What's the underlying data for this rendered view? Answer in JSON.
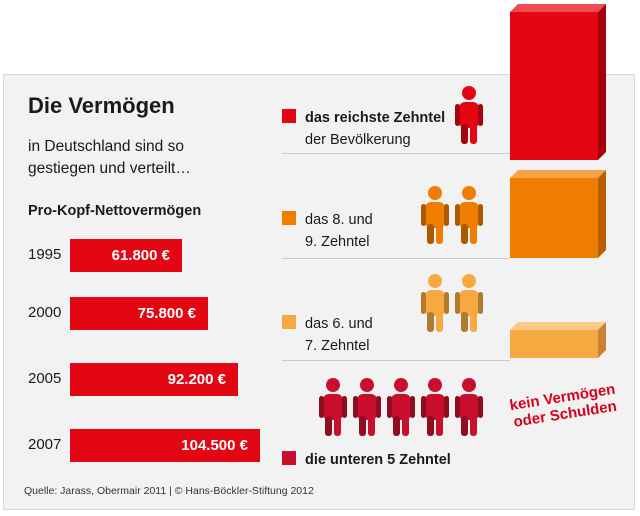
{
  "header": {
    "title": "Die Vermögen",
    "subtitle": "in Deutschland sind so gestiegen und verteilt…",
    "ylabel": "Pro-Kopf-Nettovermögen"
  },
  "source": "Quelle: Jarass, Obermair 2011 | © Hans-Böckler-Stiftung 2012",
  "colors": {
    "bar": "#e30613",
    "top_decile": "#e30613",
    "decile_8_9": "#ef7d00",
    "decile_6_7": "#f7a941",
    "bottom_5": "#c8102e"
  },
  "distribution": {
    "groups": [
      {
        "line1": "das reichste Zehntel",
        "line2": "der Bevölkerung",
        "figures": 1,
        "color": "#e30613"
      },
      {
        "line1": "das 8. und",
        "line2": "9. Zehntel",
        "figures": 2,
        "color": "#ef7d00"
      },
      {
        "line1": "das 6. und",
        "line2": "7. Zehntel",
        "figures": 2,
        "color": "#f7a941"
      },
      {
        "line1": "die unteren 5 Zehntel",
        "line2": "",
        "figures": 5,
        "color": "#c8102e"
      }
    ],
    "annotation_line1": "kein Vermögen",
    "annotation_line2": "oder Schulden"
  },
  "chart_data": {
    "type": "bar",
    "title": "Die Vermögen",
    "ylabel": "Pro-Kopf-Nettovermögen",
    "categories": [
      "1995",
      "2000",
      "2005",
      "2007"
    ],
    "values": [
      61800,
      75800,
      92200,
      104500
    ],
    "value_labels": [
      "61.800 €",
      "75.800 €",
      "92.200 €",
      "104.500 €"
    ],
    "unit": "€",
    "orientation": "horizontal",
    "legend": "none",
    "grid": false
  }
}
